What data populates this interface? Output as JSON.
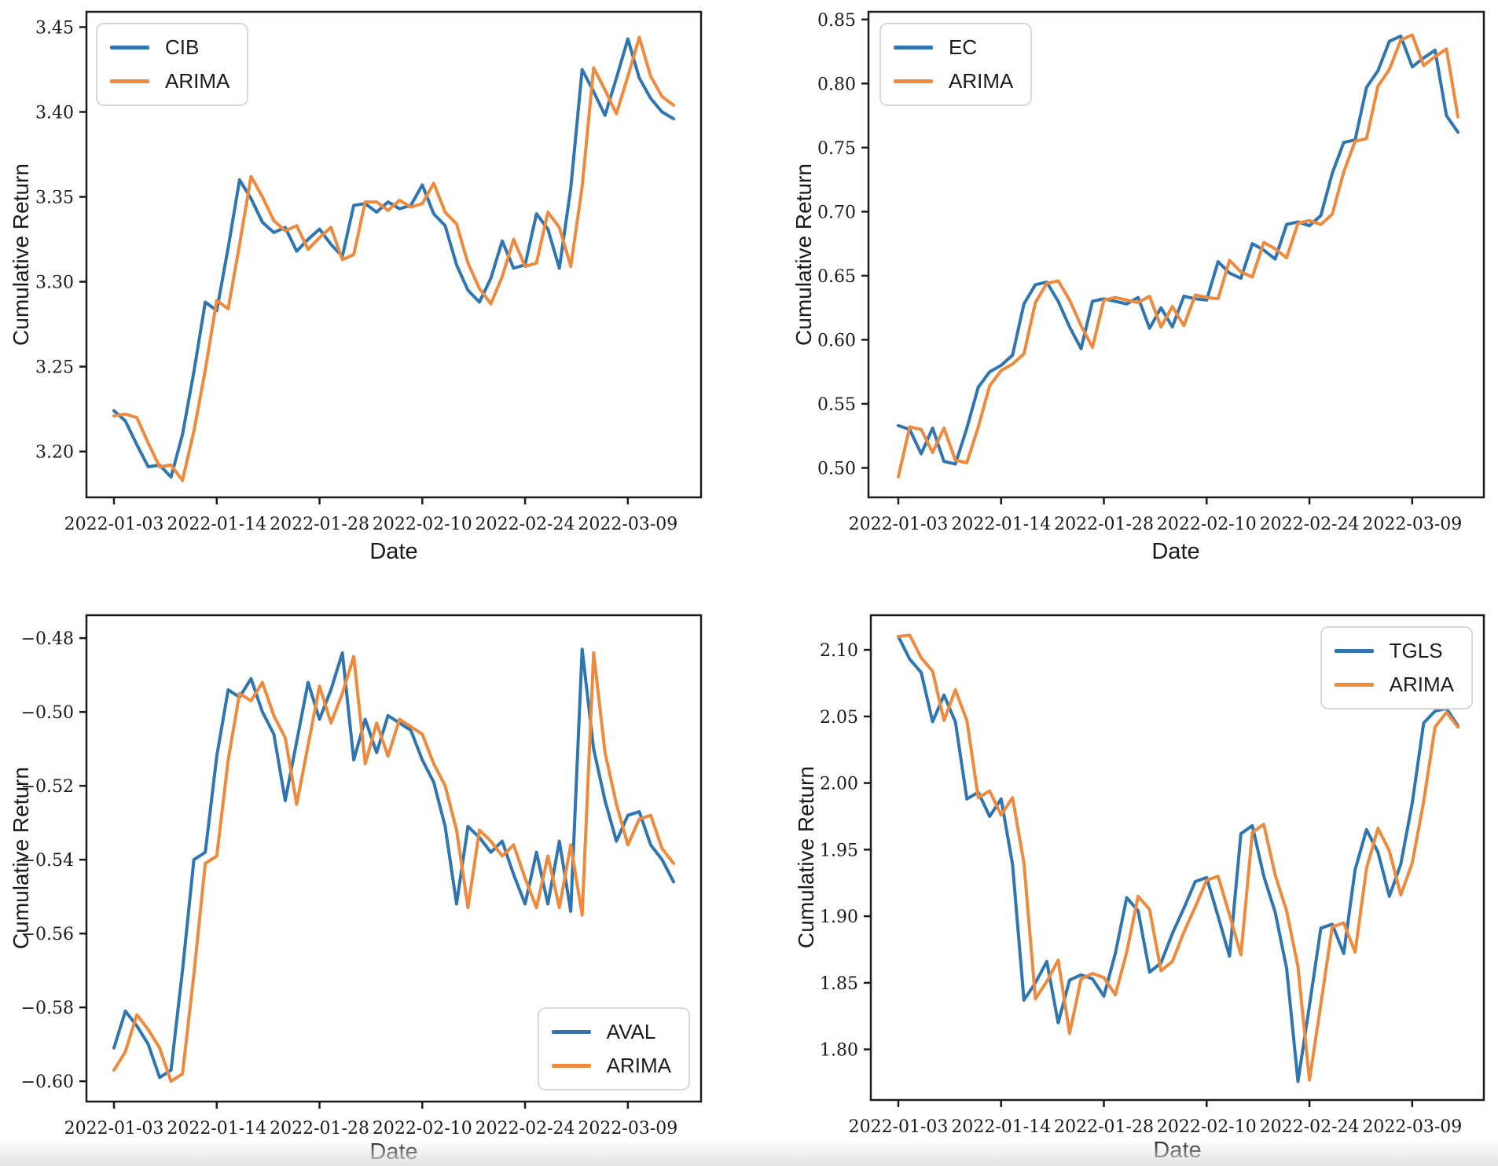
{
  "figure": {
    "background": "#ffffff"
  },
  "colors": {
    "stock_line": "#2f76b1",
    "arima_line": "#ee8a3d",
    "spine": "#1b1b1b",
    "text": "#1a1a1a",
    "legend_border": "#d9d9d9"
  },
  "x_axis": {
    "label": "Date",
    "tick_labels": [
      "2022-01-03",
      "2022-01-14",
      "2022-01-28",
      "2022-02-10",
      "2022-02-24",
      "2022-03-09"
    ],
    "tick_indices": [
      0,
      9,
      18,
      27,
      36,
      45
    ]
  },
  "chart_data": [
    {
      "id": "cib",
      "type": "line",
      "xlabel": "Date",
      "ylabel": "Cumulative Return",
      "legend_position": "upper left",
      "grid": false,
      "ylim": [
        3.173,
        3.459
      ],
      "yticks": [
        3.2,
        3.25,
        3.3,
        3.35,
        3.4,
        3.45
      ],
      "ytick_labels": [
        "3.20",
        "3.25",
        "3.30",
        "3.35",
        "3.40",
        "3.45"
      ],
      "x": [
        "2022-01-03",
        "2022-01-04",
        "2022-01-05",
        "2022-01-06",
        "2022-01-07",
        "2022-01-10",
        "2022-01-11",
        "2022-01-12",
        "2022-01-13",
        "2022-01-14",
        "2022-01-18",
        "2022-01-19",
        "2022-01-20",
        "2022-01-21",
        "2022-01-24",
        "2022-01-25",
        "2022-01-26",
        "2022-01-27",
        "2022-01-28",
        "2022-01-31",
        "2022-02-01",
        "2022-02-02",
        "2022-02-03",
        "2022-02-04",
        "2022-02-07",
        "2022-02-08",
        "2022-02-09",
        "2022-02-10",
        "2022-02-11",
        "2022-02-14",
        "2022-02-15",
        "2022-02-16",
        "2022-02-17",
        "2022-02-18",
        "2022-02-22",
        "2022-02-23",
        "2022-02-24",
        "2022-02-25",
        "2022-02-28",
        "2022-03-01",
        "2022-03-02",
        "2022-03-03",
        "2022-03-04",
        "2022-03-07",
        "2022-03-08",
        "2022-03-09",
        "2022-03-10",
        "2022-03-11",
        "2022-03-14",
        "2022-03-15"
      ],
      "series": [
        {
          "name": "CIB",
          "color": "#2f76b1",
          "values": [
            3.224,
            3.218,
            3.204,
            3.191,
            3.192,
            3.185,
            3.21,
            3.247,
            3.288,
            3.283,
            3.32,
            3.36,
            3.349,
            3.335,
            3.329,
            3.332,
            3.318,
            3.325,
            3.331,
            3.322,
            3.315,
            3.345,
            3.346,
            3.341,
            3.347,
            3.343,
            3.345,
            3.357,
            3.34,
            3.333,
            3.31,
            3.295,
            3.288,
            3.302,
            3.324,
            3.308,
            3.31,
            3.34,
            3.331,
            3.308,
            3.355,
            3.425,
            3.412,
            3.398,
            3.42,
            3.443,
            3.42,
            3.408,
            3.4,
            3.396
          ]
        },
        {
          "name": "ARIMA",
          "color": "#ee8a3d",
          "values": [
            3.221,
            3.222,
            3.22,
            3.205,
            3.191,
            3.192,
            3.183,
            3.212,
            3.248,
            3.289,
            3.284,
            3.322,
            3.362,
            3.35,
            3.336,
            3.33,
            3.333,
            3.319,
            3.326,
            3.332,
            3.313,
            3.316,
            3.347,
            3.347,
            3.342,
            3.348,
            3.344,
            3.346,
            3.358,
            3.341,
            3.334,
            3.311,
            3.296,
            3.287,
            3.303,
            3.325,
            3.309,
            3.311,
            3.341,
            3.332,
            3.309,
            3.356,
            3.426,
            3.413,
            3.399,
            3.421,
            3.444,
            3.421,
            3.409,
            3.404
          ]
        }
      ]
    },
    {
      "id": "ec",
      "type": "line",
      "xlabel": "Date",
      "ylabel": "Cumulative Return",
      "legend_position": "upper left",
      "grid": false,
      "ylim": [
        0.477,
        0.856
      ],
      "yticks": [
        0.5,
        0.55,
        0.6,
        0.65,
        0.7,
        0.75,
        0.8,
        0.85
      ],
      "ytick_labels": [
        "0.50",
        "0.55",
        "0.60",
        "0.65",
        "0.70",
        "0.75",
        "0.80",
        "0.85"
      ],
      "x": [
        "2022-01-03",
        "2022-01-04",
        "2022-01-05",
        "2022-01-06",
        "2022-01-07",
        "2022-01-10",
        "2022-01-11",
        "2022-01-12",
        "2022-01-13",
        "2022-01-14",
        "2022-01-18",
        "2022-01-19",
        "2022-01-20",
        "2022-01-21",
        "2022-01-24",
        "2022-01-25",
        "2022-01-26",
        "2022-01-27",
        "2022-01-28",
        "2022-01-31",
        "2022-02-01",
        "2022-02-02",
        "2022-02-03",
        "2022-02-04",
        "2022-02-07",
        "2022-02-08",
        "2022-02-09",
        "2022-02-10",
        "2022-02-11",
        "2022-02-14",
        "2022-02-15",
        "2022-02-16",
        "2022-02-17",
        "2022-02-18",
        "2022-02-22",
        "2022-02-23",
        "2022-02-24",
        "2022-02-25",
        "2022-02-28",
        "2022-03-01",
        "2022-03-02",
        "2022-03-03",
        "2022-03-04",
        "2022-03-07",
        "2022-03-08",
        "2022-03-09",
        "2022-03-10",
        "2022-03-11",
        "2022-03-14",
        "2022-03-15"
      ],
      "series": [
        {
          "name": "EC",
          "color": "#2f76b1",
          "values": [
            0.533,
            0.53,
            0.511,
            0.531,
            0.505,
            0.503,
            0.531,
            0.563,
            0.575,
            0.58,
            0.588,
            0.628,
            0.643,
            0.645,
            0.63,
            0.61,
            0.593,
            0.63,
            0.632,
            0.63,
            0.628,
            0.633,
            0.609,
            0.625,
            0.61,
            0.634,
            0.632,
            0.631,
            0.661,
            0.652,
            0.648,
            0.675,
            0.67,
            0.663,
            0.69,
            0.692,
            0.689,
            0.697,
            0.73,
            0.754,
            0.756,
            0.797,
            0.81,
            0.833,
            0.837,
            0.813,
            0.82,
            0.826,
            0.775,
            0.762
          ]
        },
        {
          "name": "ARIMA",
          "color": "#ee8a3d",
          "values": [
            0.493,
            0.532,
            0.53,
            0.512,
            0.531,
            0.506,
            0.504,
            0.532,
            0.564,
            0.576,
            0.581,
            0.589,
            0.629,
            0.644,
            0.646,
            0.631,
            0.611,
            0.594,
            0.631,
            0.633,
            0.631,
            0.629,
            0.634,
            0.61,
            0.626,
            0.611,
            0.635,
            0.633,
            0.632,
            0.662,
            0.653,
            0.649,
            0.676,
            0.671,
            0.664,
            0.691,
            0.693,
            0.69,
            0.698,
            0.731,
            0.755,
            0.757,
            0.798,
            0.811,
            0.834,
            0.838,
            0.814,
            0.821,
            0.827,
            0.774
          ]
        }
      ]
    },
    {
      "id": "aval",
      "type": "line",
      "xlabel": "Date",
      "ylabel": "Cumulative Return",
      "legend_position": "lower right",
      "grid": false,
      "ylim": [
        -0.6055,
        -0.4738
      ],
      "yticks": [
        -0.6,
        -0.58,
        -0.56,
        -0.54,
        -0.52,
        -0.5,
        -0.48
      ],
      "ytick_labels": [
        "−0.60",
        "−0.58",
        "−0.56",
        "−0.54",
        "−0.52",
        "−0.50",
        "−0.48"
      ],
      "x": [
        "2022-01-03",
        "2022-01-04",
        "2022-01-05",
        "2022-01-06",
        "2022-01-07",
        "2022-01-10",
        "2022-01-11",
        "2022-01-12",
        "2022-01-13",
        "2022-01-14",
        "2022-01-18",
        "2022-01-19",
        "2022-01-20",
        "2022-01-21",
        "2022-01-24",
        "2022-01-25",
        "2022-01-26",
        "2022-01-27",
        "2022-01-28",
        "2022-01-31",
        "2022-02-01",
        "2022-02-02",
        "2022-02-03",
        "2022-02-04",
        "2022-02-07",
        "2022-02-08",
        "2022-02-09",
        "2022-02-10",
        "2022-02-11",
        "2022-02-14",
        "2022-02-15",
        "2022-02-16",
        "2022-02-17",
        "2022-02-18",
        "2022-02-22",
        "2022-02-23",
        "2022-02-24",
        "2022-02-25",
        "2022-02-28",
        "2022-03-01",
        "2022-03-02",
        "2022-03-03",
        "2022-03-04",
        "2022-03-07",
        "2022-03-08",
        "2022-03-09",
        "2022-03-10",
        "2022-03-11",
        "2022-03-14",
        "2022-03-15"
      ],
      "series": [
        {
          "name": "AVAL",
          "color": "#2f76b1",
          "values": [
            -0.591,
            -0.581,
            -0.585,
            -0.59,
            -0.599,
            -0.597,
            -0.57,
            -0.54,
            -0.538,
            -0.512,
            -0.494,
            -0.496,
            -0.491,
            -0.5,
            -0.506,
            -0.524,
            -0.508,
            -0.492,
            -0.502,
            -0.494,
            -0.484,
            -0.513,
            -0.502,
            -0.511,
            -0.501,
            -0.503,
            -0.505,
            -0.513,
            -0.519,
            -0.531,
            -0.552,
            -0.531,
            -0.534,
            -0.538,
            -0.535,
            -0.544,
            -0.552,
            -0.538,
            -0.552,
            -0.535,
            -0.554,
            -0.483,
            -0.51,
            -0.524,
            -0.535,
            -0.528,
            -0.527,
            -0.536,
            -0.54,
            -0.546
          ]
        },
        {
          "name": "ARIMA",
          "color": "#ee8a3d",
          "values": [
            -0.597,
            -0.592,
            -0.582,
            -0.586,
            -0.591,
            -0.6,
            -0.598,
            -0.571,
            -0.541,
            -0.539,
            -0.513,
            -0.495,
            -0.497,
            -0.492,
            -0.501,
            -0.507,
            -0.525,
            -0.509,
            -0.493,
            -0.503,
            -0.495,
            -0.485,
            -0.514,
            -0.503,
            -0.512,
            -0.502,
            -0.504,
            -0.506,
            -0.514,
            -0.52,
            -0.532,
            -0.553,
            -0.532,
            -0.535,
            -0.539,
            -0.536,
            -0.545,
            -0.553,
            -0.539,
            -0.553,
            -0.536,
            -0.555,
            -0.484,
            -0.511,
            -0.525,
            -0.536,
            -0.529,
            -0.528,
            -0.537,
            -0.541
          ]
        }
      ]
    },
    {
      "id": "tgls",
      "type": "line",
      "xlabel": "Date",
      "ylabel": "Cumulative Return",
      "legend_position": "upper right",
      "grid": false,
      "ylim": [
        1.762,
        2.126
      ],
      "yticks": [
        1.8,
        1.85,
        1.9,
        1.95,
        2.0,
        2.05,
        2.1
      ],
      "ytick_labels": [
        "1.80",
        "1.85",
        "1.90",
        "1.95",
        "2.00",
        "2.05",
        "2.10"
      ],
      "x": [
        "2022-01-03",
        "2022-01-04",
        "2022-01-05",
        "2022-01-06",
        "2022-01-07",
        "2022-01-10",
        "2022-01-11",
        "2022-01-12",
        "2022-01-13",
        "2022-01-14",
        "2022-01-18",
        "2022-01-19",
        "2022-01-20",
        "2022-01-21",
        "2022-01-24",
        "2022-01-25",
        "2022-01-26",
        "2022-01-27",
        "2022-01-28",
        "2022-01-31",
        "2022-02-01",
        "2022-02-02",
        "2022-02-03",
        "2022-02-04",
        "2022-02-07",
        "2022-02-08",
        "2022-02-09",
        "2022-02-10",
        "2022-02-11",
        "2022-02-14",
        "2022-02-15",
        "2022-02-16",
        "2022-02-17",
        "2022-02-18",
        "2022-02-22",
        "2022-02-23",
        "2022-02-24",
        "2022-02-25",
        "2022-02-28",
        "2022-03-01",
        "2022-03-02",
        "2022-03-03",
        "2022-03-04",
        "2022-03-07",
        "2022-03-08",
        "2022-03-09",
        "2022-03-10",
        "2022-03-11",
        "2022-03-14",
        "2022-03-15"
      ],
      "series": [
        {
          "name": "TGLS",
          "color": "#2f76b1",
          "values": [
            2.11,
            2.093,
            2.083,
            2.046,
            2.066,
            2.046,
            1.988,
            1.993,
            1.975,
            1.988,
            1.939,
            1.837,
            1.85,
            1.866,
            1.82,
            1.852,
            1.856,
            1.853,
            1.84,
            1.872,
            1.914,
            1.904,
            1.858,
            1.865,
            1.887,
            1.906,
            1.926,
            1.929,
            1.9,
            1.87,
            1.962,
            1.968,
            1.93,
            1.903,
            1.861,
            1.776,
            1.833,
            1.891,
            1.894,
            1.872,
            1.935,
            1.965,
            1.948,
            1.915,
            1.939,
            1.985,
            2.045,
            2.054,
            2.056,
            2.043
          ]
        },
        {
          "name": "ARIMA",
          "color": "#ee8a3d",
          "values": [
            2.11,
            2.111,
            2.094,
            2.084,
            2.047,
            2.07,
            2.047,
            1.989,
            1.994,
            1.976,
            1.989,
            1.94,
            1.838,
            1.851,
            1.867,
            1.812,
            1.853,
            1.857,
            1.854,
            1.841,
            1.873,
            1.915,
            1.905,
            1.859,
            1.866,
            1.888,
            1.907,
            1.927,
            1.93,
            1.901,
            1.871,
            1.963,
            1.969,
            1.931,
            1.904,
            1.862,
            1.777,
            1.834,
            1.892,
            1.895,
            1.873,
            1.936,
            1.966,
            1.949,
            1.916,
            1.94,
            1.986,
            2.042,
            2.053,
            2.042
          ]
        }
      ]
    }
  ]
}
